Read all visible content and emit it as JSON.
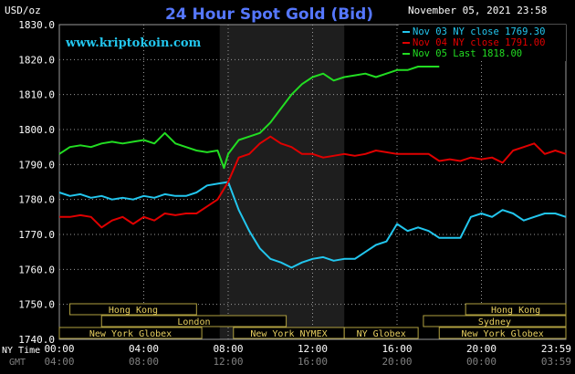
{
  "header": {
    "units": "USD/oz",
    "title": "24 Hour Spot Gold (Bid)",
    "datetime": "November 05, 2021 23:58",
    "watermark": "www.kriptokoin.com"
  },
  "legend": [
    {
      "label": "Nov 03 NY close 1769.30",
      "color": "#22c6ee"
    },
    {
      "label": "Nov 04 NY close 1791.00",
      "color": "#e00000"
    },
    {
      "label": "Nov 05 Last 1818.00",
      "color": "#22dd22"
    }
  ],
  "axis_labels": {
    "ny_time": "NY Time",
    "gmt": "GMT"
  },
  "market_sessions": [
    {
      "name": "Hong Kong",
      "start": 0.5,
      "end": 6.5
    },
    {
      "name": "Hong Kong",
      "start": 19.25,
      "end": 24.0
    },
    {
      "name": "London",
      "start": 2.0,
      "end": 10.75
    },
    {
      "name": "Sydney",
      "start": 17.25,
      "end": 24.0
    },
    {
      "name": "New York Globex",
      "start": 0.0,
      "end": 6.75
    },
    {
      "name": "New York NYMEX",
      "start": 8.25,
      "end": 13.5
    },
    {
      "name": "NY Globex",
      "start": 13.5,
      "end": 17.0
    },
    {
      "name": "New York Globex",
      "start": 18.0,
      "end": 24.0
    }
  ],
  "colors": {
    "background": "#000000",
    "grid": "#9a9a9a",
    "title": "#5577ff",
    "watermark": "#22c6ee",
    "session_text": "#e8d060",
    "session_border": "#b0a040",
    "shaded_band": "#1e1e1e",
    "axis_text": "#ffffff",
    "gmt_text": "#808080"
  },
  "chart_data": {
    "type": "line",
    "ylim": [
      1740,
      1830
    ],
    "xlim": [
      0,
      24
    ],
    "y_ticks": [
      "1740.0",
      "1750.0",
      "1760.0",
      "1770.0",
      "1780.0",
      "1790.0",
      "1800.0",
      "1810.0",
      "1820.0",
      "1830.0"
    ],
    "x_ticks_ny": [
      "00:00",
      "04:00",
      "08:00",
      "12:00",
      "16:00",
      "20:00",
      "23:59"
    ],
    "x_ticks_gmt": [
      "04:00",
      "08:00",
      "12:00",
      "16:00",
      "20:00",
      "00:00",
      "03:59"
    ],
    "shaded_x_range": [
      7.6,
      13.5
    ],
    "grid": true,
    "series": [
      {
        "name": "Nov 03 NY close 1769.30",
        "color": "#22c6ee",
        "x": [
          0,
          0.5,
          1,
          1.5,
          2,
          2.5,
          3,
          3.5,
          4,
          4.5,
          5,
          5.5,
          6,
          6.5,
          7,
          7.5,
          8,
          8.5,
          9,
          9.5,
          10,
          10.5,
          11,
          11.5,
          12,
          12.5,
          13,
          13.5,
          14,
          14.5,
          15,
          15.5,
          16,
          16.5,
          17,
          17.5,
          18,
          18.5,
          19,
          19.5,
          20,
          20.5,
          21,
          21.5,
          22,
          22.5,
          23,
          23.5,
          24
        ],
        "y": [
          1782,
          1781,
          1781.5,
          1780.5,
          1781,
          1780,
          1780.5,
          1780,
          1781,
          1780.5,
          1781.5,
          1781,
          1781,
          1782,
          1784,
          1784.5,
          1785,
          1777,
          1771,
          1766,
          1763,
          1762,
          1760.5,
          1762,
          1763,
          1763.5,
          1762.5,
          1763,
          1763,
          1765,
          1767,
          1768,
          1773,
          1771,
          1772,
          1771,
          1769,
          1769,
          1769,
          1775,
          1776,
          1775,
          1777,
          1776,
          1774,
          1775,
          1776,
          1776,
          1775
        ]
      },
      {
        "name": "Nov 04 NY close 1791.00",
        "color": "#e00000",
        "x": [
          0,
          0.5,
          1,
          1.5,
          2,
          2.5,
          3,
          3.5,
          4,
          4.5,
          5,
          5.5,
          6,
          6.5,
          7,
          7.5,
          8,
          8.5,
          9,
          9.5,
          10,
          10.5,
          11,
          11.5,
          12,
          12.5,
          13,
          13.5,
          14,
          14.5,
          15,
          15.5,
          16,
          16.5,
          17,
          17.5,
          18,
          18.5,
          19,
          19.5,
          20,
          20.5,
          21,
          21.5,
          22,
          22.5,
          23,
          23.5,
          24
        ],
        "y": [
          1775,
          1775,
          1775.5,
          1775,
          1772,
          1774,
          1775,
          1773,
          1775,
          1774,
          1776,
          1775.5,
          1776,
          1776,
          1778,
          1780,
          1785,
          1792,
          1793,
          1796,
          1798,
          1796,
          1795,
          1793,
          1793,
          1792,
          1792.5,
          1793,
          1792.5,
          1793,
          1794,
          1793.5,
          1793,
          1793,
          1793,
          1793,
          1791,
          1791.5,
          1791,
          1792,
          1791.5,
          1792,
          1790.5,
          1794,
          1795,
          1796,
          1793,
          1794,
          1793
        ]
      },
      {
        "name": "Nov 05 Last 1818.00",
        "color": "#22dd22",
        "x": [
          0,
          0.5,
          1,
          1.5,
          2,
          2.5,
          3,
          3.5,
          4,
          4.5,
          5,
          5.5,
          6,
          6.5,
          7,
          7.5,
          7.8,
          8,
          8.5,
          9,
          9.5,
          10,
          10.5,
          11,
          11.5,
          12,
          12.5,
          13,
          13.5,
          14,
          14.5,
          15,
          15.5,
          16,
          16.5,
          17,
          17.5,
          18
        ],
        "y": [
          1793,
          1795,
          1795.5,
          1795,
          1796,
          1796.5,
          1796,
          1796.5,
          1797,
          1796,
          1799,
          1796,
          1795,
          1794,
          1793.5,
          1794,
          1789,
          1793,
          1797,
          1798,
          1799,
          1802,
          1806,
          1810,
          1813,
          1815,
          1816,
          1814,
          1815,
          1815.5,
          1816,
          1815,
          1816,
          1817,
          1817,
          1818,
          1818,
          1818
        ]
      }
    ]
  }
}
